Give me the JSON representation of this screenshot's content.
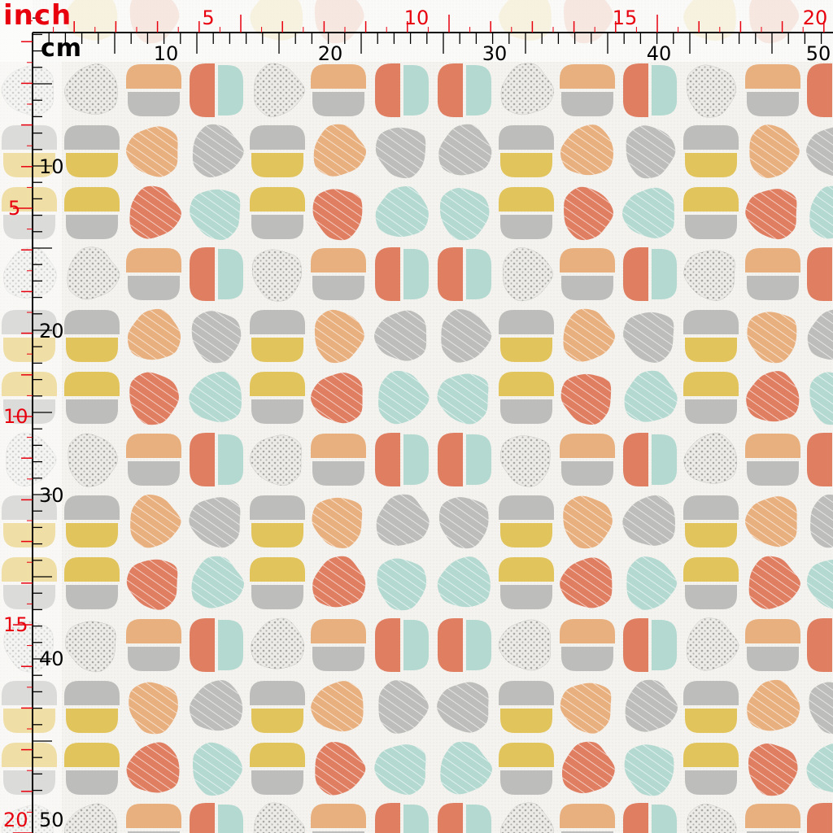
{
  "rulers": {
    "inch_unit": "inch",
    "cm_unit": "cm",
    "top_inch_ticks": [
      "5",
      "10",
      "15",
      "20"
    ],
    "top_cm_ticks": [
      "10",
      "20",
      "30",
      "40",
      "50"
    ],
    "left_inch_ticks": [
      "5",
      "10",
      "15",
      "20"
    ],
    "left_cm_ticks": [
      "10",
      "20",
      "30",
      "40",
      "50"
    ],
    "inch_color": "#e8000e",
    "cm_color": "#000000"
  },
  "pattern": {
    "colors": {
      "grey": "#bdbdbb",
      "orange": "#e9b07f",
      "coral": "#e07e62",
      "mint": "#b3d9d1",
      "yellow": "#e2c45c",
      "background": "#f4f3ef"
    }
  }
}
